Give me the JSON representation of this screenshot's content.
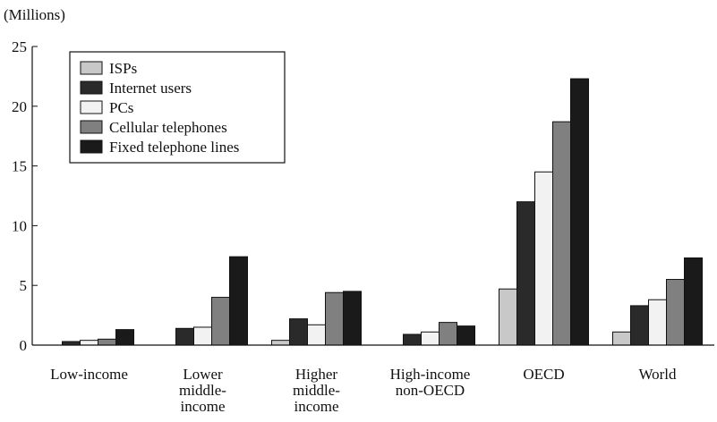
{
  "chart_data": {
    "type": "bar",
    "unit_label": "(Millions)",
    "categories": [
      [
        "Low-income"
      ],
      [
        "Lower",
        "middle-",
        "income"
      ],
      [
        "Higher",
        "middle-",
        "income"
      ],
      [
        "High-income",
        "non-OECD"
      ],
      [
        "OECD"
      ],
      [
        "World"
      ]
    ],
    "series": [
      {
        "name": "ISPs",
        "color": "#c8c8c8",
        "values": [
          0,
          0,
          0.4,
          0,
          4.7,
          1.1
        ]
      },
      {
        "name": "Internet users",
        "color": "#2a2a2a",
        "values": [
          0.3,
          1.4,
          2.2,
          0.9,
          12.0,
          3.3
        ]
      },
      {
        "name": "PCs",
        "color": "#f2f2f2",
        "values": [
          0.4,
          1.5,
          1.7,
          1.1,
          14.5,
          3.8
        ]
      },
      {
        "name": "Cellular telephones",
        "color": "#808080",
        "values": [
          0.5,
          4.0,
          4.4,
          1.9,
          18.7,
          5.5
        ]
      },
      {
        "name": "Fixed telephone lines",
        "color": "#1a1a1a",
        "values": [
          1.3,
          7.4,
          4.5,
          1.6,
          22.3,
          7.3
        ]
      }
    ],
    "ylim": [
      0,
      25
    ],
    "yticks": [
      0,
      5,
      10,
      15,
      20,
      25
    ],
    "legend_position": "top-left",
    "grid": false
  }
}
